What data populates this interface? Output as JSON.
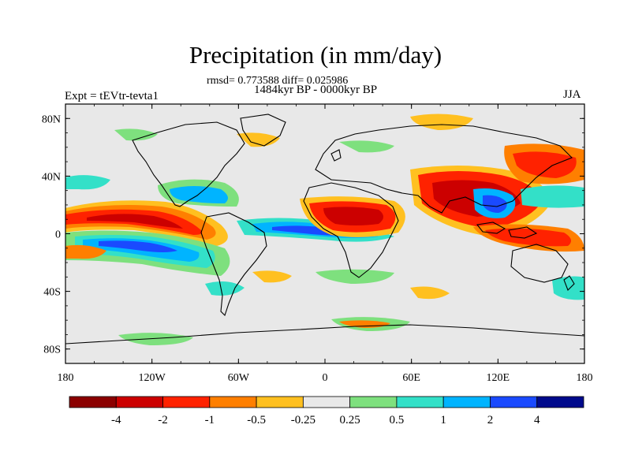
{
  "title": "Precipitation (in mm/day)",
  "stats_line": "rmsd= 0.773588 diff= 0.025986",
  "period_line": "1484kyr BP - 0000kyr BP",
  "left_label": "Expt = tEVtr-tevta1",
  "right_label": "JJA",
  "map": {
    "lat_ticks": [
      "80N",
      "40N",
      "0",
      "40S",
      "80S"
    ],
    "lon_ticks": [
      "180",
      "120W",
      "60W",
      "0",
      "60E",
      "120E",
      "180"
    ]
  },
  "colorbar": {
    "labels": [
      "-4",
      "-2",
      "-1",
      "-0.5",
      "-0.25",
      "0.25",
      "0.5",
      "1",
      "2",
      "4"
    ],
    "colors": [
      "#8b0000",
      "#cc0000",
      "#ff2200",
      "#ff7f00",
      "#ffc020",
      "#e8e8e8",
      "#7ee07e",
      "#33e0c8",
      "#00b4ff",
      "#1a4aff",
      "#000a8c"
    ]
  }
}
